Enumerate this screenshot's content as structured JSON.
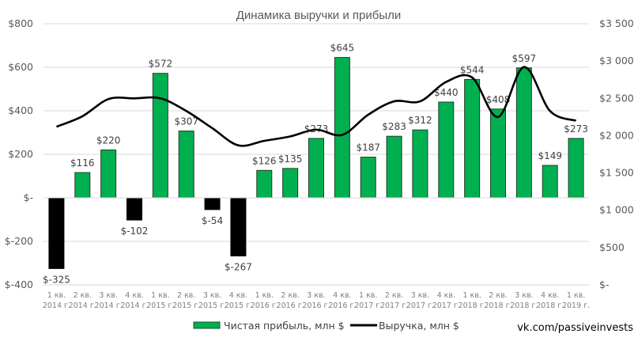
{
  "chart_data": {
    "type": "bar",
    "title": "Динамика выручки и прибыли",
    "categories": [
      "1 кв. 2014 г.",
      "2 кв. 2014 г.",
      "3 кв. 2014 г.",
      "4 кв. 2014 г.",
      "1 кв. 2015 г.",
      "2 кв. 2015 г.",
      "3 кв. 2015 г.",
      "4 кв. 2015 г.",
      "1 кв. 2016 г.",
      "2 кв. 2016 г.",
      "3 кв. 2016 г.",
      "4 кв. 2016 г.",
      "1 кв. 2017 г.",
      "2 кв. 2017 г.",
      "3 кв. 2017 г.",
      "4 кв. 2017 г.",
      "1 кв. 2018 г.",
      "2 кв. 2018 г.",
      "3 кв. 2018 г.",
      "4 кв. 2018 г.",
      "1 кв. 2019 г."
    ],
    "category_lines": [
      [
        "1 кв.",
        "2014 г."
      ],
      [
        "2 кв.",
        "2014 г."
      ],
      [
        "3 кв.",
        "2014 г."
      ],
      [
        "4 кв.",
        "2014 г."
      ],
      [
        "1 кв.",
        "2015 г."
      ],
      [
        "2 кв.",
        "2015 г."
      ],
      [
        "3 кв.",
        "2015 г."
      ],
      [
        "4 кв.",
        "2015 г."
      ],
      [
        "1 кв.",
        "2016 г."
      ],
      [
        "2 кв.",
        "2016 г."
      ],
      [
        "3 кв.",
        "2016 г."
      ],
      [
        "4 кв.",
        "2016 г."
      ],
      [
        "1 кв.",
        "2017 г."
      ],
      [
        "2 кв.",
        "2017 г."
      ],
      [
        "3 кв.",
        "2017 г."
      ],
      [
        "4 кв.",
        "2017 г."
      ],
      [
        "1 кв.",
        "2018 г."
      ],
      [
        "2 кв.",
        "2018 г."
      ],
      [
        "3 кв.",
        "2018 г."
      ],
      [
        "4 кв.",
        "2018 г."
      ],
      [
        "1 кв.",
        "2019 г."
      ]
    ],
    "series": [
      {
        "name": "Чистая прибыль, млн $",
        "type": "bar",
        "axis": "left",
        "values": [
          -325,
          116,
          220,
          -102,
          572,
          307,
          -54,
          -267,
          126,
          135,
          273,
          645,
          187,
          283,
          312,
          440,
          544,
          408,
          597,
          149,
          273
        ],
        "labels": [
          "$-325",
          "$116",
          "$220",
          "$-102",
          "$572",
          "$307",
          "$-54",
          "$-267",
          "$126",
          "$135",
          "$273",
          "$645",
          "$187",
          "$283",
          "$312",
          "$440",
          "$544",
          "$408",
          "$597",
          "$149",
          "$273"
        ],
        "positive_color": "#00b050",
        "negative_color": "#000000"
      },
      {
        "name": "Выручка, млн $",
        "type": "line",
        "axis": "right",
        "smooth": true,
        "color": "#000000",
        "values": [
          2120,
          2260,
          2490,
          2500,
          2500,
          2330,
          2100,
          1870,
          1930,
          1990,
          2080,
          2010,
          2280,
          2460,
          2460,
          2720,
          2780,
          2250,
          2920,
          2330,
          2200
        ]
      }
    ],
    "left_axis": {
      "ylim": [
        -400,
        800
      ],
      "ticks": [
        800,
        600,
        400,
        200,
        0,
        -200,
        -400
      ],
      "tick_labels": [
        "$800",
        "$600",
        "$400",
        "$200",
        "$-",
        "$-200",
        "$-400"
      ]
    },
    "right_axis": {
      "ylim": [
        0,
        3500
      ],
      "ticks": [
        3500,
        3000,
        2500,
        2000,
        1500,
        1000,
        500,
        0
      ],
      "tick_labels": [
        "$3 500",
        "$3 000",
        "$2 500",
        "$2 000",
        "$1 500",
        "$1 000",
        "$500",
        "$-"
      ]
    },
    "xlabel": "",
    "ylabel": "",
    "grid": true,
    "legend_position": "bottom"
  },
  "legend": {
    "items": [
      {
        "label": "Чистая прибыль, млн $",
        "type": "bar",
        "color": "#00b050"
      },
      {
        "label": "Выручка, млн $",
        "type": "line",
        "color": "#000000"
      }
    ]
  },
  "watermark": "vk.com/passiveinvests"
}
